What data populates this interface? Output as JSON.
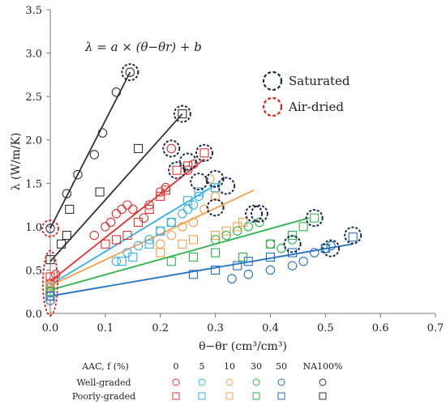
{
  "chart_data": {
    "type": "scatter",
    "equation": "λ = a × (θ−θr) + b",
    "xlabel": "θ−θr (cm³/cm³)",
    "ylabel": "λ (W/m/K)",
    "xlim": [
      0,
      0.7
    ],
    "ylim": [
      0,
      3.5
    ],
    "x_ticks": [
      "0.0",
      "0.1",
      "0.2",
      "0.3",
      "0.4",
      "0.5",
      "0.6",
      "0.7"
    ],
    "y_ticks": [
      "0.0",
      "0.5",
      "1.0",
      "1.5",
      "2.0",
      "2.5",
      "3.0",
      "3.5"
    ],
    "grid": false,
    "highlight_legend": [
      {
        "label": "Saturated",
        "color": "#1a2a4a"
      },
      {
        "label": "Air-dried",
        "color": "#e02020"
      }
    ],
    "bottom_legend": {
      "group_label": "AAC, f (%)",
      "levels": [
        "0",
        "5",
        "10",
        "30",
        "50",
        "NA100%"
      ],
      "colors": [
        "#e53030",
        "#35aee6",
        "#f5a04a",
        "#2db34a",
        "#1f6fc4",
        "#333333"
      ],
      "rows": [
        {
          "label": "Well-graded",
          "marker": "circle"
        },
        {
          "label": "Poorly-graded",
          "marker": "square"
        }
      ]
    },
    "series": [
      {
        "level": "0",
        "color": "#e53030",
        "fit": [
          [
            0,
            0.37
          ],
          [
            0.28,
            1.78
          ]
        ],
        "circles": [
          [
            0,
            0.3
          ],
          [
            0,
            0.35
          ],
          [
            0.01,
            0.45
          ],
          [
            0.08,
            0.9
          ],
          [
            0.1,
            1.0
          ],
          [
            0.11,
            1.05
          ],
          [
            0.12,
            1.15
          ],
          [
            0.13,
            1.2
          ],
          [
            0.14,
            1.25
          ],
          [
            0.15,
            1.2
          ],
          [
            0.17,
            1.1
          ],
          [
            0.18,
            1.25
          ],
          [
            0.2,
            1.4
          ],
          [
            0.21,
            1.45
          ],
          [
            0.22,
            1.9
          ],
          [
            0.25,
            1.65
          ],
          [
            0.26,
            1.72
          ]
        ],
        "squares": [
          [
            0,
            0.3
          ],
          [
            0,
            0.42
          ],
          [
            0.1,
            0.8
          ],
          [
            0.12,
            0.85
          ],
          [
            0.14,
            0.9
          ],
          [
            0.16,
            1.05
          ],
          [
            0.18,
            1.2
          ],
          [
            0.2,
            1.35
          ],
          [
            0.21,
            1.42
          ],
          [
            0.23,
            1.65
          ],
          [
            0.25,
            1.7
          ],
          [
            0.28,
            1.85
          ]
        ]
      },
      {
        "level": "5",
        "color": "#35aee6",
        "fit": [
          [
            0,
            0.33
          ],
          [
            0.3,
            1.48
          ]
        ],
        "circles": [
          [
            0,
            0.3
          ],
          [
            0.12,
            0.6
          ],
          [
            0.14,
            0.7
          ],
          [
            0.16,
            0.78
          ],
          [
            0.18,
            0.85
          ],
          [
            0.2,
            0.95
          ],
          [
            0.22,
            1.05
          ],
          [
            0.24,
            1.15
          ],
          [
            0.25,
            1.2
          ],
          [
            0.26,
            1.25
          ],
          [
            0.27,
            1.35
          ]
        ],
        "squares": [
          [
            0,
            0.3
          ],
          [
            0.13,
            0.6
          ],
          [
            0.15,
            0.65
          ],
          [
            0.18,
            0.8
          ],
          [
            0.2,
            0.95
          ],
          [
            0.22,
            1.05
          ],
          [
            0.25,
            1.3
          ],
          [
            0.27,
            1.4
          ],
          [
            0.3,
            1.45
          ]
        ]
      },
      {
        "level": "10",
        "color": "#f5a04a",
        "fit": [
          [
            0,
            0.32
          ],
          [
            0.37,
            1.42
          ]
        ],
        "circles": [
          [
            0,
            0.32
          ],
          [
            0.2,
            0.8
          ],
          [
            0.22,
            0.9
          ],
          [
            0.24,
            1.0
          ],
          [
            0.26,
            1.05
          ],
          [
            0.28,
            1.2
          ],
          [
            0.3,
            1.35
          ],
          [
            0.29,
            1.55
          ]
        ],
        "squares": [
          [
            0,
            0.3
          ],
          [
            0.2,
            0.7
          ],
          [
            0.24,
            0.8
          ],
          [
            0.26,
            0.85
          ],
          [
            0.3,
            0.9
          ],
          [
            0.32,
            0.95
          ],
          [
            0.34,
            1.0
          ],
          [
            0.35,
            1.05
          ]
        ]
      },
      {
        "level": "30",
        "color": "#2db34a",
        "fit": [
          [
            0,
            0.27
          ],
          [
            0.47,
            1.1
          ]
        ],
        "circles": [
          [
            0,
            0.25
          ],
          [
            0.3,
            0.85
          ],
          [
            0.32,
            0.9
          ],
          [
            0.34,
            0.95
          ],
          [
            0.36,
            1.0
          ],
          [
            0.38,
            1.05
          ],
          [
            0.4,
            0.8
          ],
          [
            0.42,
            0.75
          ],
          [
            0.44,
            0.85
          ]
        ],
        "squares": [
          [
            0,
            0.25
          ],
          [
            0.22,
            0.6
          ],
          [
            0.26,
            0.65
          ],
          [
            0.3,
            0.7
          ],
          [
            0.35,
            0.65
          ],
          [
            0.4,
            0.8
          ],
          [
            0.44,
            0.9
          ],
          [
            0.46,
            1.0
          ],
          [
            0.48,
            1.1
          ]
        ]
      },
      {
        "level": "50",
        "color": "#1f6fc4",
        "fit": [
          [
            0,
            0.2
          ],
          [
            0.55,
            0.8
          ]
        ],
        "circles": [
          [
            0,
            0.15
          ],
          [
            0,
            0.2
          ],
          [
            0.33,
            0.4
          ],
          [
            0.36,
            0.45
          ],
          [
            0.4,
            0.5
          ],
          [
            0.44,
            0.55
          ],
          [
            0.46,
            0.6
          ],
          [
            0.48,
            0.7
          ],
          [
            0.5,
            0.75
          ],
          [
            0.51,
            0.78
          ]
        ],
        "squares": [
          [
            0,
            0.2
          ],
          [
            0.26,
            0.45
          ],
          [
            0.3,
            0.5
          ],
          [
            0.34,
            0.55
          ],
          [
            0.36,
            0.6
          ],
          [
            0.4,
            0.65
          ],
          [
            0.44,
            0.7
          ],
          [
            0.5,
            0.75
          ],
          [
            0.55,
            0.88
          ]
        ]
      },
      {
        "level": "NA100%",
        "color": "#333333",
        "fit_wg": [
          [
            0,
            0.98
          ],
          [
            0.145,
            2.78
          ]
        ],
        "fit_pg": [
          [
            0,
            0.6
          ],
          [
            0.24,
            2.3
          ]
        ],
        "circles": [
          [
            0,
            0.98
          ],
          [
            0.03,
            1.38
          ],
          [
            0.05,
            1.6
          ],
          [
            0.08,
            1.83
          ],
          [
            0.095,
            2.08
          ],
          [
            0.12,
            2.55
          ],
          [
            0.145,
            2.78
          ]
        ],
        "squares": [
          [
            0,
            0.62
          ],
          [
            0.02,
            0.8
          ],
          [
            0.03,
            0.9
          ],
          [
            0.035,
            1.2
          ],
          [
            0.09,
            1.4
          ],
          [
            0.16,
            1.9
          ],
          [
            0.24,
            2.3
          ]
        ]
      }
    ],
    "saturated_points": [
      [
        0.145,
        2.78
      ],
      [
        0.24,
        2.3
      ],
      [
        0.22,
        1.9
      ],
      [
        0.25,
        1.75
      ],
      [
        0.28,
        1.85
      ],
      [
        0.23,
        1.65
      ],
      [
        0.27,
        1.52
      ],
      [
        0.3,
        1.55
      ],
      [
        0.32,
        1.47
      ],
      [
        0.3,
        1.22
      ],
      [
        0.38,
        1.15
      ],
      [
        0.37,
        1.15
      ],
      [
        0.48,
        1.1
      ],
      [
        0.44,
        0.8
      ],
      [
        0.51,
        0.75
      ],
      [
        0.55,
        0.9
      ]
    ],
    "airdried_points": [
      [
        0,
        0.98
      ],
      [
        0,
        0.35
      ]
    ]
  }
}
